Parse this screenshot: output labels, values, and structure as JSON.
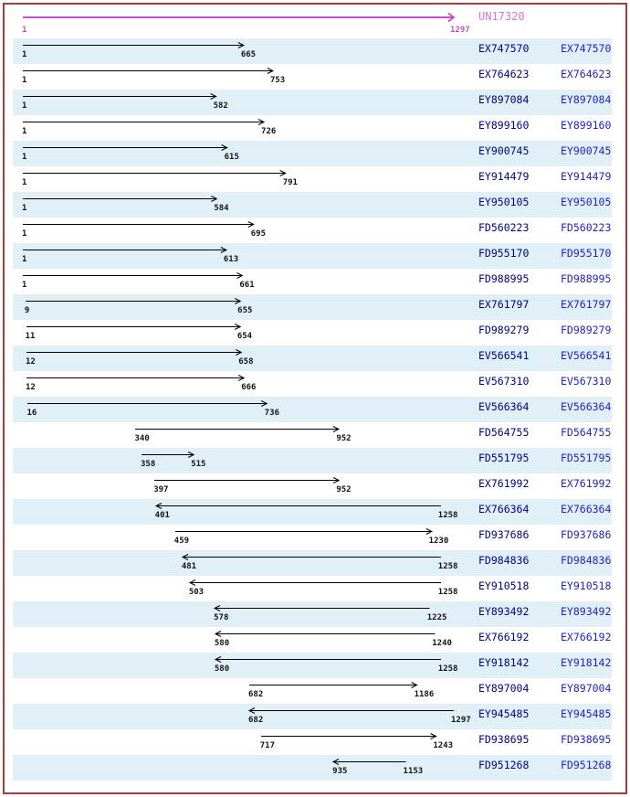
{
  "page": {
    "border_color": "#B23A34",
    "band_color": "#E1EFF6",
    "alignment_arrow_color": "#000000",
    "accession_color_left": "#00008B",
    "accession_color_right": "#2222CC",
    "reference_arrow_color": "#C353C9",
    "reference_text_color": "#CE79CE"
  },
  "chart_data": {
    "type": "table",
    "title": "UN17320",
    "axis": {
      "min": 1,
      "max": 1297,
      "grid": false
    },
    "reference": {
      "name": "UN17320",
      "start": 1,
      "end": 1297,
      "direction": "right"
    },
    "columns": [
      "accession",
      "start",
      "end",
      "direction"
    ],
    "alignments": [
      {
        "accession": "EX747570",
        "start": 1,
        "end": 665,
        "direction": "right"
      },
      {
        "accession": "EX764623",
        "start": 1,
        "end": 753,
        "direction": "right"
      },
      {
        "accession": "EY897084",
        "start": 1,
        "end": 582,
        "direction": "right"
      },
      {
        "accession": "EY899160",
        "start": 1,
        "end": 726,
        "direction": "right"
      },
      {
        "accession": "EY900745",
        "start": 1,
        "end": 615,
        "direction": "right"
      },
      {
        "accession": "EY914479",
        "start": 1,
        "end": 791,
        "direction": "right"
      },
      {
        "accession": "EY950105",
        "start": 1,
        "end": 584,
        "direction": "right"
      },
      {
        "accession": "FD560223",
        "start": 1,
        "end": 695,
        "direction": "right"
      },
      {
        "accession": "FD955170",
        "start": 1,
        "end": 613,
        "direction": "right"
      },
      {
        "accession": "FD988995",
        "start": 1,
        "end": 661,
        "direction": "right"
      },
      {
        "accession": "EX761797",
        "start": 9,
        "end": 655,
        "direction": "right"
      },
      {
        "accession": "FD989279",
        "start": 11,
        "end": 654,
        "direction": "right"
      },
      {
        "accession": "EV566541",
        "start": 12,
        "end": 658,
        "direction": "right"
      },
      {
        "accession": "EV567310",
        "start": 12,
        "end": 666,
        "direction": "right"
      },
      {
        "accession": "EV566364",
        "start": 16,
        "end": 736,
        "direction": "right"
      },
      {
        "accession": "FD564755",
        "start": 340,
        "end": 952,
        "direction": "right"
      },
      {
        "accession": "FD551795",
        "start": 358,
        "end": 515,
        "direction": "right"
      },
      {
        "accession": "EX761992",
        "start": 397,
        "end": 952,
        "direction": "right"
      },
      {
        "accession": "EX766364",
        "start": 401,
        "end": 1258,
        "direction": "left"
      },
      {
        "accession": "FD937686",
        "start": 459,
        "end": 1230,
        "direction": "right"
      },
      {
        "accession": "FD984836",
        "start": 481,
        "end": 1258,
        "direction": "left"
      },
      {
        "accession": "EY910518",
        "start": 503,
        "end": 1258,
        "direction": "left"
      },
      {
        "accession": "EY893492",
        "start": 578,
        "end": 1225,
        "direction": "left"
      },
      {
        "accession": "EX766192",
        "start": 580,
        "end": 1240,
        "direction": "left"
      },
      {
        "accession": "EY918142",
        "start": 580,
        "end": 1258,
        "direction": "left"
      },
      {
        "accession": "EY897004",
        "start": 682,
        "end": 1186,
        "direction": "right"
      },
      {
        "accession": "EY945485",
        "start": 682,
        "end": 1297,
        "direction": "left"
      },
      {
        "accession": "FD938695",
        "start": 717,
        "end": 1243,
        "direction": "right"
      },
      {
        "accession": "FD951268",
        "start": 935,
        "end": 1153,
        "direction": "left"
      }
    ]
  }
}
